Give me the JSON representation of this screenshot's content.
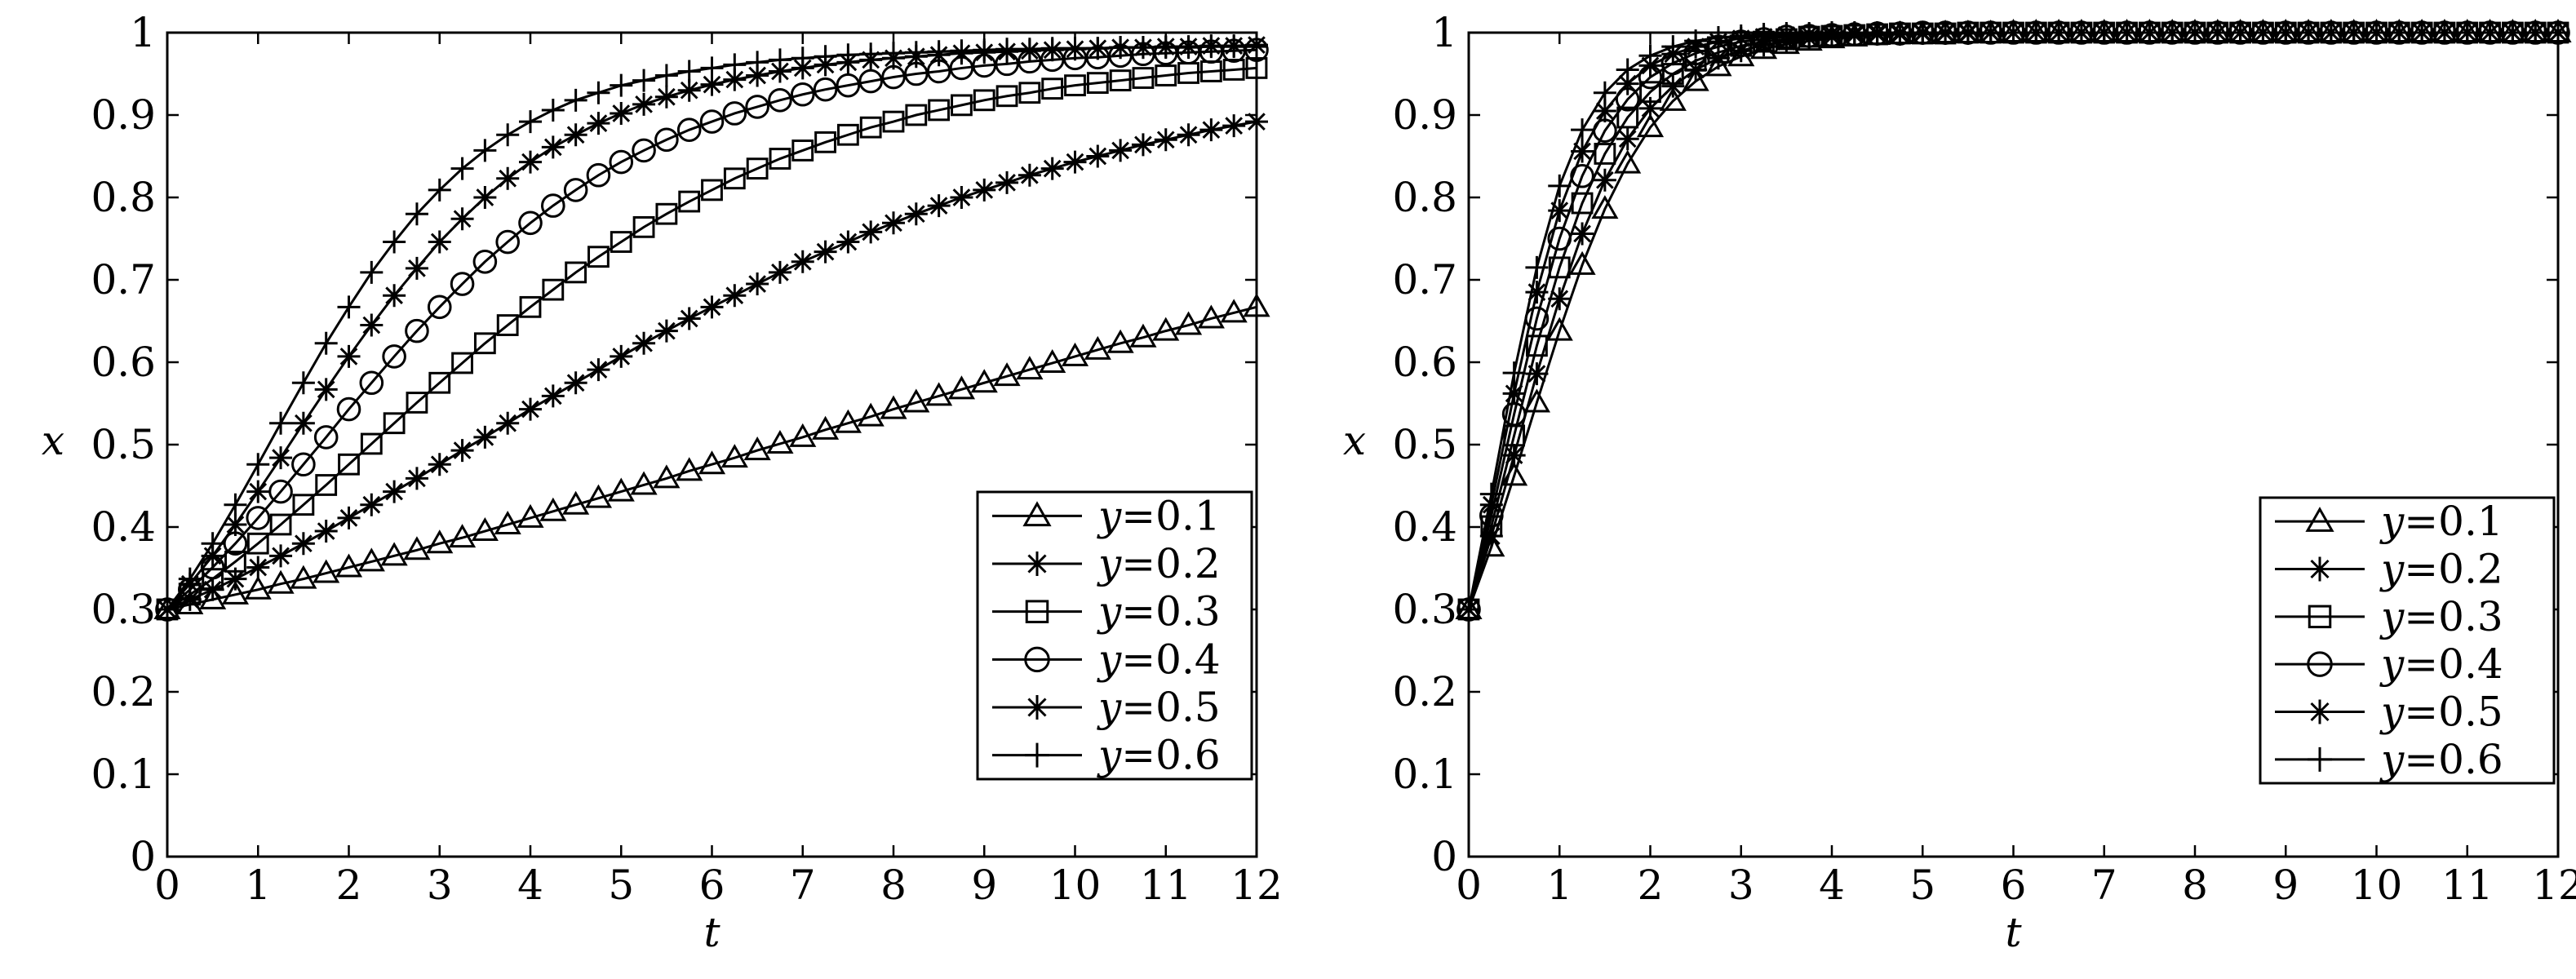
{
  "chart_data": [
    {
      "type": "line",
      "title": "",
      "xlabel": "t",
      "ylabel": "x",
      "xlim": [
        0,
        12
      ],
      "ylim": [
        0,
        1
      ],
      "xticks": [
        "0",
        "1",
        "2",
        "3",
        "4",
        "5",
        "6",
        "7",
        "8",
        "9",
        "10",
        "11",
        "12"
      ],
      "yticks": [
        "0",
        "0.1",
        "0.2",
        "0.3",
        "0.4",
        "0.5",
        "0.6",
        "0.7",
        "0.8",
        "0.9",
        "1"
      ],
      "grid": false,
      "legend_position": "bottom-right",
      "x": [
        0,
        0.25,
        0.5,
        0.75,
        1,
        1.25,
        1.5,
        1.75,
        2,
        2.25,
        2.5,
        2.75,
        3,
        3.25,
        3.5,
        3.75,
        4,
        4.25,
        4.5,
        4.75,
        5,
        5.25,
        5.5,
        5.75,
        6,
        6.25,
        6.5,
        6.75,
        7,
        7.25,
        7.5,
        7.75,
        8,
        8.25,
        8.5,
        8.75,
        9,
        9.25,
        9.5,
        9.75,
        10,
        10.25,
        10.5,
        10.75,
        11,
        11.25,
        11.5,
        11.75,
        12
      ],
      "series": [
        {
          "name": "y=0.1",
          "marker": "triangle",
          "values": [
            0.3,
            0.306,
            0.312,
            0.318,
            0.324,
            0.331,
            0.337,
            0.344,
            0.351,
            0.358,
            0.365,
            0.372,
            0.38,
            0.387,
            0.395,
            0.403,
            0.411,
            0.419,
            0.427,
            0.435,
            0.443,
            0.451,
            0.459,
            0.468,
            0.476,
            0.484,
            0.493,
            0.501,
            0.509,
            0.518,
            0.526,
            0.534,
            0.543,
            0.551,
            0.559,
            0.567,
            0.575,
            0.583,
            0.591,
            0.599,
            0.607,
            0.615,
            0.623,
            0.63,
            0.638,
            0.645,
            0.653,
            0.66,
            0.667
          ]
        },
        {
          "name": "y=0.2",
          "marker": "asterisk",
          "values": [
            0.3,
            0.312,
            0.324,
            0.337,
            0.351,
            0.365,
            0.38,
            0.395,
            0.411,
            0.427,
            0.443,
            0.459,
            0.476,
            0.493,
            0.509,
            0.526,
            0.543,
            0.559,
            0.575,
            0.591,
            0.607,
            0.623,
            0.638,
            0.653,
            0.667,
            0.681,
            0.695,
            0.709,
            0.722,
            0.734,
            0.746,
            0.758,
            0.769,
            0.78,
            0.79,
            0.8,
            0.809,
            0.818,
            0.827,
            0.835,
            0.843,
            0.85,
            0.857,
            0.864,
            0.87,
            0.876,
            0.882,
            0.887,
            0.892
          ]
        },
        {
          "name": "y=0.3",
          "marker": "square",
          "values": [
            0.3,
            0.318,
            0.337,
            0.358,
            0.38,
            0.403,
            0.427,
            0.451,
            0.476,
            0.501,
            0.526,
            0.551,
            0.575,
            0.599,
            0.623,
            0.645,
            0.667,
            0.688,
            0.709,
            0.728,
            0.746,
            0.764,
            0.78,
            0.795,
            0.809,
            0.823,
            0.835,
            0.847,
            0.857,
            0.867,
            0.876,
            0.885,
            0.892,
            0.9,
            0.906,
            0.912,
            0.918,
            0.923,
            0.927,
            0.932,
            0.936,
            0.939,
            0.942,
            0.945,
            0.948,
            0.951,
            0.953,
            0.955,
            0.957
          ]
        },
        {
          "name": "y=0.4",
          "marker": "circle",
          "values": [
            0.3,
            0.324,
            0.351,
            0.38,
            0.411,
            0.443,
            0.476,
            0.509,
            0.543,
            0.575,
            0.607,
            0.638,
            0.667,
            0.695,
            0.722,
            0.746,
            0.769,
            0.79,
            0.809,
            0.827,
            0.843,
            0.857,
            0.87,
            0.882,
            0.892,
            0.902,
            0.91,
            0.918,
            0.925,
            0.931,
            0.936,
            0.941,
            0.946,
            0.95,
            0.953,
            0.957,
            0.96,
            0.962,
            0.965,
            0.967,
            0.969,
            0.97,
            0.972,
            0.974,
            0.975,
            0.976,
            0.977,
            0.978,
            0.979
          ]
        },
        {
          "name": "y=0.5",
          "marker": "asterisk",
          "values": [
            0.3,
            0.331,
            0.365,
            0.403,
            0.443,
            0.484,
            0.526,
            0.567,
            0.607,
            0.645,
            0.681,
            0.714,
            0.746,
            0.774,
            0.8,
            0.823,
            0.843,
            0.861,
            0.876,
            0.89,
            0.902,
            0.913,
            0.922,
            0.93,
            0.937,
            0.943,
            0.948,
            0.953,
            0.957,
            0.961,
            0.964,
            0.967,
            0.969,
            0.971,
            0.973,
            0.975,
            0.976,
            0.977,
            0.978,
            0.979,
            0.98,
            0.981,
            0.982,
            0.982,
            0.983,
            0.983,
            0.984,
            0.984,
            0.985
          ]
        },
        {
          "name": "y=0.6",
          "marker": "plus",
          "values": [
            0.3,
            0.337,
            0.38,
            0.427,
            0.476,
            0.526,
            0.575,
            0.623,
            0.667,
            0.709,
            0.746,
            0.78,
            0.809,
            0.835,
            0.857,
            0.876,
            0.892,
            0.906,
            0.918,
            0.927,
            0.936,
            0.942,
            0.948,
            0.953,
            0.957,
            0.961,
            0.964,
            0.967,
            0.969,
            0.971,
            0.973,
            0.974,
            0.975,
            0.976,
            0.977,
            0.978,
            0.979,
            0.98,
            0.98,
            0.981,
            0.981,
            0.981,
            0.982,
            0.982,
            0.982,
            0.982,
            0.983,
            0.983,
            0.983
          ]
        }
      ]
    },
    {
      "type": "line",
      "title": "",
      "xlabel": "t",
      "ylabel": "x",
      "xlim": [
        0,
        12
      ],
      "ylim": [
        0,
        1
      ],
      "xticks": [
        "0",
        "1",
        "2",
        "3",
        "4",
        "5",
        "6",
        "7",
        "8",
        "9",
        "10",
        "11",
        "12"
      ],
      "yticks": [
        "0",
        "0.1",
        "0.2",
        "0.3",
        "0.4",
        "0.5",
        "0.6",
        "0.7",
        "0.8",
        "0.9",
        "1"
      ],
      "grid": false,
      "legend_position": "bottom-right",
      "x": [
        0,
        0.25,
        0.5,
        0.75,
        1,
        1.25,
        1.5,
        1.75,
        2,
        2.25,
        2.5,
        2.75,
        3,
        3.25,
        3.5,
        3.75,
        4,
        4.25,
        4.5,
        4.75,
        5,
        5.25,
        5.5,
        5.75,
        6,
        6.25,
        6.5,
        6.75,
        7,
        7.25,
        7.5,
        7.75,
        8,
        8.25,
        8.5,
        8.75,
        9,
        9.25,
        9.5,
        9.75,
        10,
        10.25,
        10.5,
        10.75,
        11,
        11.25,
        11.5,
        11.75,
        12
      ],
      "series": [
        {
          "name": "y=0.1",
          "marker": "triangle",
          "values": [
            0.3,
            0.376,
            0.462,
            0.551,
            0.638,
            0.718,
            0.786,
            0.841,
            0.885,
            0.917,
            0.941,
            0.959,
            0.971,
            0.98,
            0.986,
            0.99,
            0.993,
            0.995,
            0.997,
            0.998,
            0.998,
            0.999,
            0.999,
            0.999,
            1,
            1,
            1,
            1,
            1,
            1,
            1,
            1,
            1,
            1,
            1,
            1,
            1,
            1,
            1,
            1,
            1,
            1,
            1,
            1,
            1,
            1,
            1,
            1,
            1
          ]
        },
        {
          "name": "y=0.2",
          "marker": "asterisk",
          "values": [
            0.3,
            0.389,
            0.487,
            0.586,
            0.677,
            0.756,
            0.821,
            0.871,
            0.908,
            0.935,
            0.955,
            0.969,
            0.978,
            0.985,
            0.989,
            0.993,
            0.995,
            0.997,
            0.998,
            0.998,
            0.999,
            0.999,
            0.999,
            1,
            1,
            1,
            1,
            1,
            1,
            1,
            1,
            1,
            1,
            1,
            1,
            1,
            1,
            1,
            1,
            1,
            1,
            1,
            1,
            1,
            1,
            1,
            1,
            1,
            1
          ]
        },
        {
          "name": "y=0.3",
          "marker": "square",
          "values": [
            0.3,
            0.401,
            0.511,
            0.62,
            0.715,
            0.793,
            0.853,
            0.897,
            0.928,
            0.95,
            0.966,
            0.976,
            0.984,
            0.989,
            0.992,
            0.995,
            0.996,
            0.997,
            0.998,
            0.999,
            0.999,
            0.999,
            1,
            1,
            1,
            1,
            1,
            1,
            1,
            1,
            1,
            1,
            1,
            1,
            1,
            1,
            1,
            1,
            1,
            1,
            1,
            1,
            1,
            1,
            1,
            1,
            1,
            1,
            1
          ]
        },
        {
          "name": "y=0.4",
          "marker": "circle",
          "values": [
            0.3,
            0.414,
            0.537,
            0.653,
            0.75,
            0.826,
            0.881,
            0.919,
            0.946,
            0.963,
            0.975,
            0.983,
            0.989,
            0.992,
            0.995,
            0.996,
            0.997,
            0.998,
            0.999,
            0.999,
            1,
            1,
            1,
            1,
            1,
            1,
            1,
            1,
            1,
            1,
            1,
            1,
            1,
            1,
            1,
            1,
            1,
            1,
            1,
            1,
            1,
            1,
            1,
            1,
            1,
            1,
            1,
            1,
            1
          ]
        },
        {
          "name": "y=0.5",
          "marker": "asterisk",
          "values": [
            0.3,
            0.427,
            0.562,
            0.685,
            0.784,
            0.856,
            0.905,
            0.938,
            0.96,
            0.974,
            0.983,
            0.989,
            0.993,
            0.995,
            0.997,
            0.998,
            0.999,
            0.999,
            1,
            1,
            1,
            1,
            1,
            1,
            1,
            1,
            1,
            1,
            1,
            1,
            1,
            1,
            1,
            1,
            1,
            1,
            1,
            1,
            1,
            1,
            1,
            1,
            1,
            1,
            1,
            1,
            1,
            1,
            1
          ]
        },
        {
          "name": "y=0.6",
          "marker": "plus",
          "values": [
            0.3,
            0.44,
            0.587,
            0.715,
            0.814,
            0.882,
            0.927,
            0.955,
            0.972,
            0.983,
            0.99,
            0.994,
            0.996,
            0.998,
            0.999,
            0.999,
            1,
            1,
            1,
            1,
            1,
            1,
            1,
            1,
            1,
            1,
            1,
            1,
            1,
            1,
            1,
            1,
            1,
            1,
            1,
            1,
            1,
            1,
            1,
            1,
            1,
            1,
            1,
            1,
            1,
            1,
            1,
            1,
            1
          ]
        }
      ]
    }
  ]
}
